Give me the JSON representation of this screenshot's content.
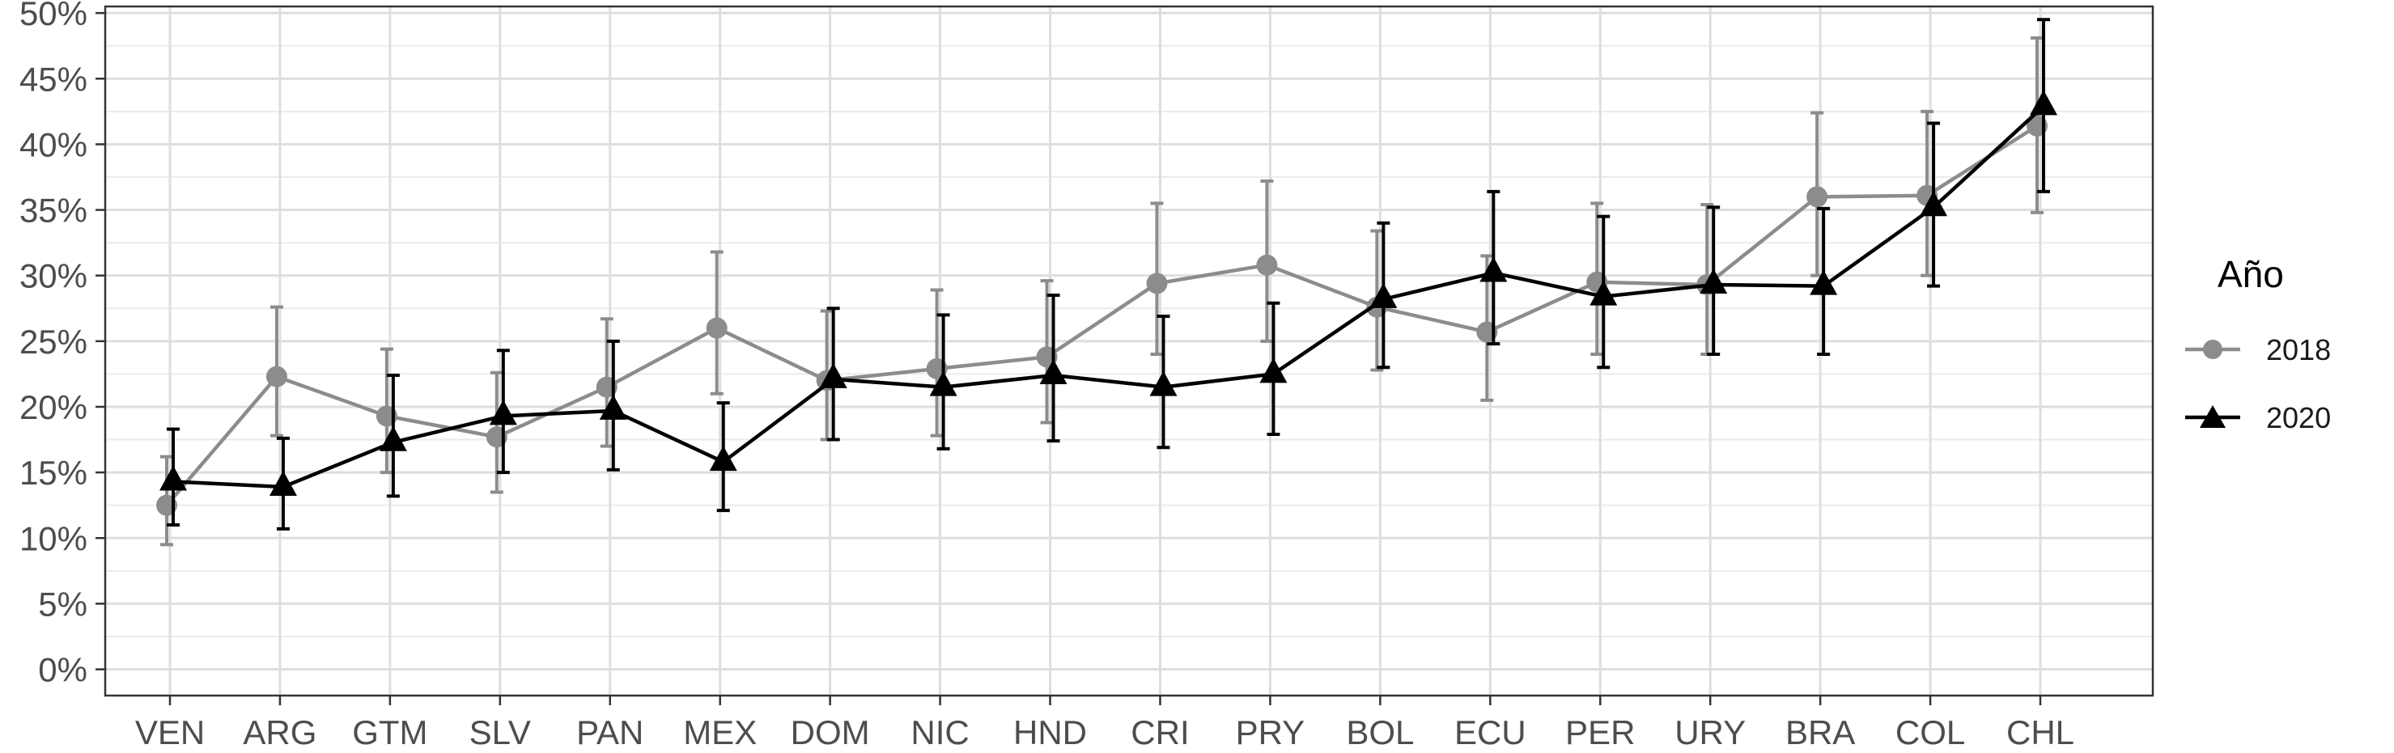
{
  "chart_data": {
    "type": "line",
    "categories": [
      "VEN",
      "ARG",
      "GTM",
      "SLV",
      "PAN",
      "MEX",
      "DOM",
      "NIC",
      "HND",
      "CRI",
      "PRY",
      "BOL",
      "ECU",
      "PER",
      "URY",
      "BRA",
      "COL",
      "CHL"
    ],
    "ylim": [
      -0.02,
      0.505
    ],
    "yticks": [
      0,
      0.05,
      0.1,
      0.15,
      0.2,
      0.25,
      0.3,
      0.35,
      0.4,
      0.45,
      0.5
    ],
    "ytick_labels": [
      "0%",
      "5%",
      "10%",
      "15%",
      "20%",
      "25%",
      "30%",
      "35%",
      "40%",
      "45%",
      "50%"
    ],
    "xlabel": "",
    "ylabel": "",
    "grid": true,
    "legend": {
      "title": "Año",
      "position": "right"
    },
    "series": [
      {
        "name": "2018",
        "color": "#8c8c8c",
        "marker": "circle",
        "values": [
          0.125,
          0.223,
          0.193,
          0.177,
          0.215,
          0.26,
          0.22,
          0.229,
          0.238,
          0.294,
          0.308,
          0.276,
          0.257,
          0.295,
          0.293,
          0.36,
          0.361,
          0.414
        ],
        "lower": [
          0.095,
          0.178,
          0.15,
          0.135,
          0.17,
          0.21,
          0.175,
          0.178,
          0.188,
          0.24,
          0.25,
          0.228,
          0.205,
          0.24,
          0.24,
          0.3,
          0.3,
          0.348
        ],
        "upper": [
          0.162,
          0.276,
          0.244,
          0.226,
          0.267,
          0.318,
          0.273,
          0.289,
          0.296,
          0.355,
          0.372,
          0.334,
          0.315,
          0.355,
          0.354,
          0.424,
          0.425,
          0.481
        ]
      },
      {
        "name": "2020",
        "color": "#000000",
        "marker": "triangle",
        "values": [
          0.143,
          0.139,
          0.173,
          0.193,
          0.197,
          0.158,
          0.221,
          0.215,
          0.224,
          0.215,
          0.225,
          0.282,
          0.302,
          0.284,
          0.293,
          0.292,
          0.352,
          0.429
        ],
        "lower": [
          0.11,
          0.107,
          0.132,
          0.15,
          0.152,
          0.121,
          0.175,
          0.168,
          0.174,
          0.169,
          0.179,
          0.23,
          0.248,
          0.23,
          0.24,
          0.24,
          0.292,
          0.364
        ],
        "upper": [
          0.183,
          0.176,
          0.224,
          0.243,
          0.25,
          0.203,
          0.275,
          0.27,
          0.285,
          0.269,
          0.279,
          0.34,
          0.364,
          0.345,
          0.352,
          0.351,
          0.416,
          0.495
        ]
      }
    ]
  }
}
